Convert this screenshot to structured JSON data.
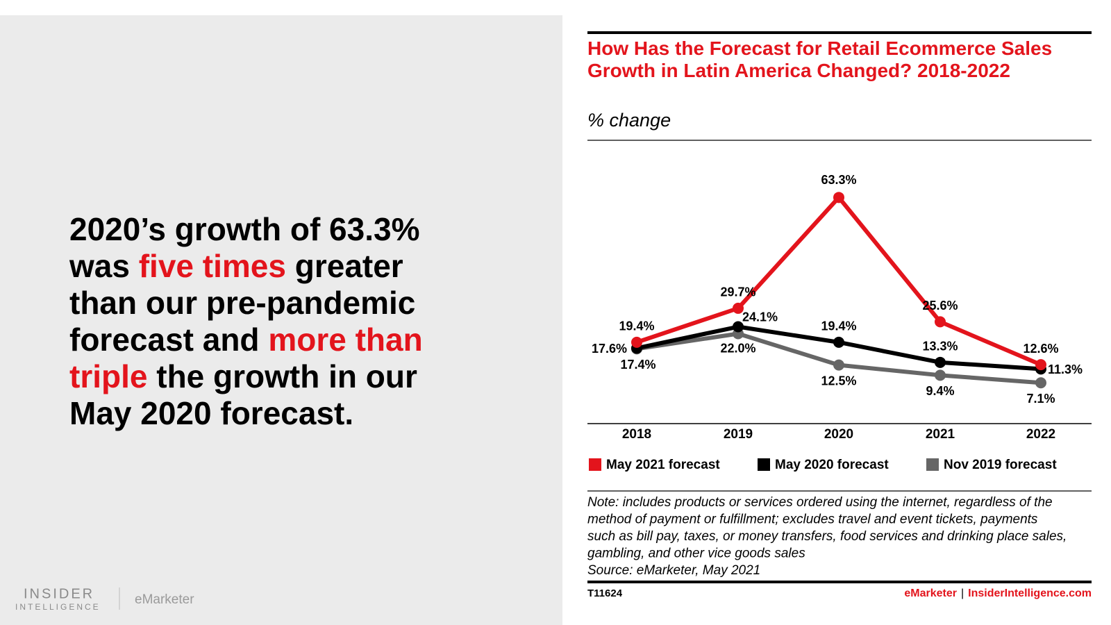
{
  "slide": {
    "headline_parts": [
      {
        "text": "2020’s growth of 63.3% was ",
        "emphasis": false
      },
      {
        "text": "five times",
        "emphasis": true
      },
      {
        "text": " greater than our pre-pandemic forecast and ",
        "emphasis": false
      },
      {
        "text": "more than triple",
        "emphasis": true
      },
      {
        "text": " the growth in our May 2020 forecast.",
        "emphasis": false
      }
    ],
    "logo": {
      "line1": "INSIDER",
      "line2": "INTELLIGENCE",
      "partner": "eMarketer"
    }
  },
  "chart_data": {
    "type": "line",
    "title": "How Has the Forecast for Retail Ecommerce Sales Growth in Latin America Changed? 2018-2022",
    "subtitle": "% change",
    "categories": [
      "2018",
      "2019",
      "2020",
      "2021",
      "2022"
    ],
    "series": [
      {
        "name": "May 2021 forecast",
        "color": "#e3141c",
        "values": [
          19.4,
          29.7,
          63.3,
          25.6,
          12.6
        ],
        "value_labels": [
          "19.4%",
          "29.7%",
          "63.3%",
          "25.6%",
          "12.6%"
        ]
      },
      {
        "name": "May 2020 forecast",
        "color": "#000000",
        "values": [
          17.6,
          24.1,
          19.4,
          13.3,
          11.3
        ],
        "value_labels": [
          "17.6%",
          "24.1%",
          "19.4%",
          "13.3%",
          "11.3%"
        ]
      },
      {
        "name": "Nov 2019 forecast",
        "color": "#666666",
        "values": [
          17.4,
          22.0,
          12.5,
          9.4,
          7.1
        ],
        "value_labels": [
          "17.4%",
          "22.0%",
          "12.5%",
          "9.4%",
          "7.1%"
        ]
      }
    ],
    "note": [
      "Note: includes products or services ordered using the internet, regardless of the",
      "method of payment or fulfillment; excludes travel and event tickets, payments",
      "such as bill pay, taxes, or money transfers, food services and drinking place sales,",
      "gambling, and other vice goods sales"
    ],
    "source": "Source: eMarketer, May 2021",
    "chart_id": "T11624",
    "footer": {
      "brand": "eMarketer",
      "separator": "|",
      "site": "InsiderIntelligence.com"
    }
  }
}
